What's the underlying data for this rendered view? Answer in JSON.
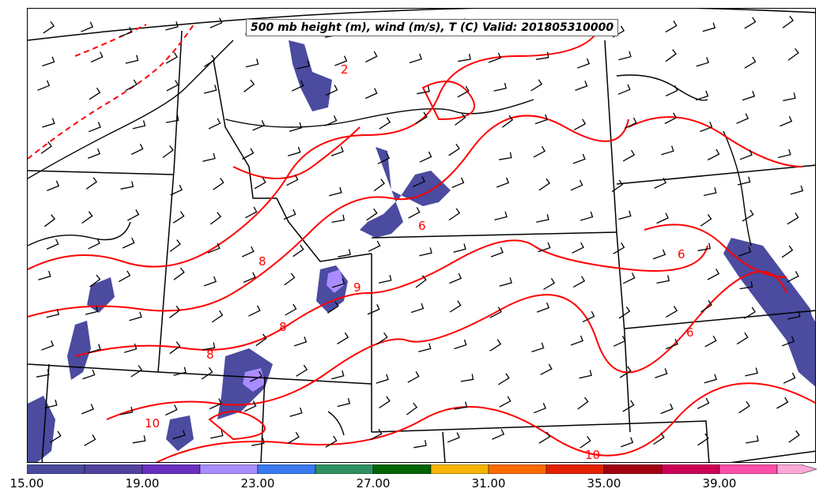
{
  "map": {
    "title": "500 mb height (m), wind (m/s), T (C) Valid: 201805310000",
    "temperature_contour_labels": [
      "2",
      "6",
      "8",
      "8",
      "9",
      "6",
      "6",
      "8",
      "10",
      "10"
    ],
    "contour_color": "#ff0000",
    "boundary_color": "#000000",
    "wind_barb_color": "#000000",
    "fill_color": "#4b4ba0"
  },
  "colorbar": {
    "colors": [
      "#4a4a9c",
      "#52429e",
      "#6b2fc0",
      "#a98cff",
      "#3a7af0",
      "#2e9060",
      "#006400",
      "#f4b400",
      "#ff6a00",
      "#e32000",
      "#a00010",
      "#cc0055",
      "#ff4fa8",
      "#ffa8d8"
    ],
    "ticks": [
      "15.00",
      "19.00",
      "23.00",
      "27.00",
      "31.00",
      "35.00",
      "39.00"
    ]
  }
}
